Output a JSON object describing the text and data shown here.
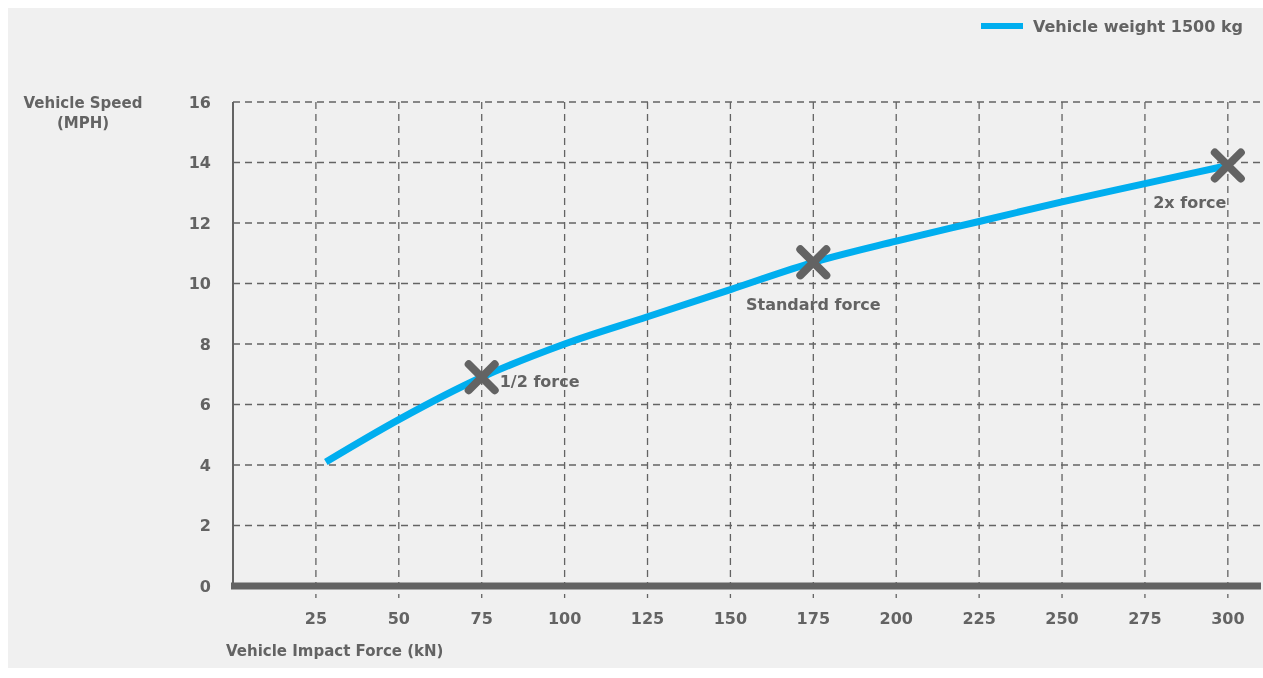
{
  "chart_data": {
    "type": "line",
    "xlabel": "Vehicle Impact Force (kN)",
    "ylabel": "Vehicle Speed (MPH)",
    "xlim": [
      0,
      310
    ],
    "xticks": [
      25,
      50,
      75,
      100,
      125,
      150,
      175,
      200,
      225,
      250,
      275,
      300
    ],
    "ylim": [
      0,
      16
    ],
    "yticks": [
      0,
      2,
      4,
      6,
      8,
      10,
      12,
      14,
      16
    ],
    "grid": true,
    "legend": "top right",
    "line_style": "solid",
    "series": [
      {
        "name": "Vehicle weight 1500 kg",
        "color": "#00aeef",
        "x": [
          28,
          50,
          75,
          100,
          125,
          150,
          175,
          200,
          225,
          250,
          275,
          300
        ],
        "values": [
          4.1,
          5.5,
          6.9,
          8.0,
          8.9,
          9.8,
          10.7,
          11.4,
          12.05,
          12.7,
          13.3,
          13.9
        ]
      },
      {
        "type": "scatter",
        "marker": "cross",
        "color": "#636363",
        "x": [
          75,
          175,
          300
        ],
        "values": [
          6.9,
          10.7,
          13.9
        ]
      }
    ],
    "annotations": [
      {
        "text": "1/2 force",
        "x": 75,
        "y": 6.9
      },
      {
        "text": "Standard force",
        "x": 175,
        "y": 10.7
      },
      {
        "text": "2x force",
        "x": 300,
        "y": 13.9
      }
    ]
  }
}
